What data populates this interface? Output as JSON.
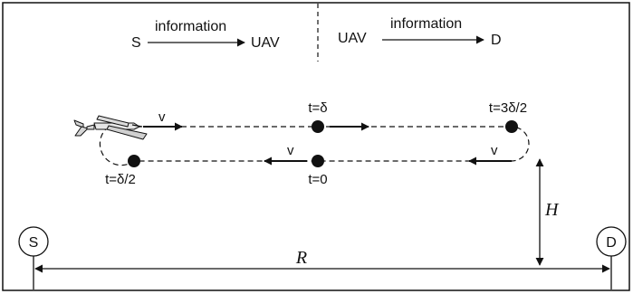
{
  "header": {
    "left": {
      "source": "S",
      "arrow_label": "information",
      "target": "UAV"
    },
    "right": {
      "source": "UAV",
      "arrow_label": "information",
      "target": "D"
    }
  },
  "trajectory": {
    "points": [
      {
        "label": "t=δ"
      },
      {
        "label": "t=3δ/2"
      },
      {
        "label": "t=0"
      },
      {
        "label": "t=δ/2"
      }
    ],
    "velocity_labels": [
      "v",
      "v",
      "v"
    ]
  },
  "nodes": {
    "source": "S",
    "destination": "D"
  },
  "dimensions": {
    "height_label": "H",
    "range_label": "R"
  },
  "colors": {
    "ink": "#111111",
    "background": "#ffffff"
  }
}
